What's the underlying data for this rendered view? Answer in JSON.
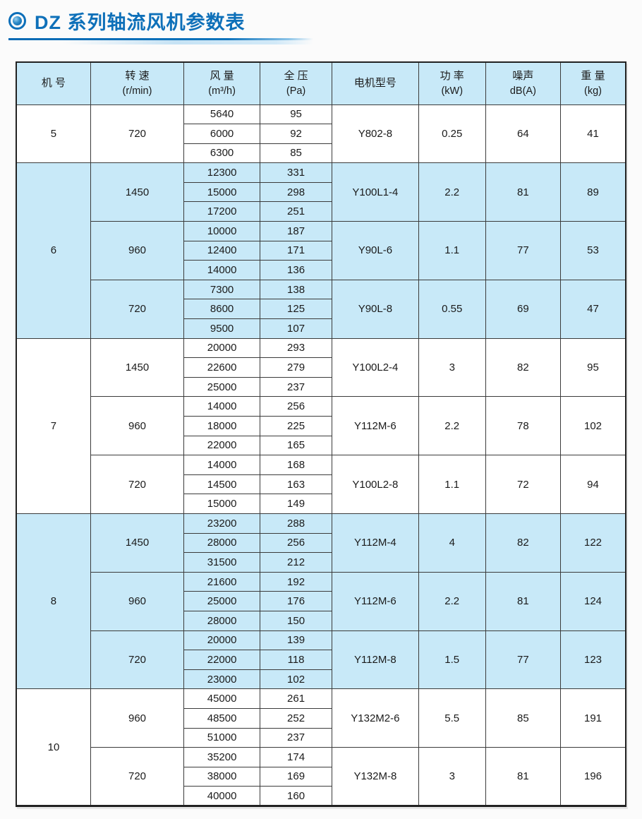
{
  "page": {
    "title": "DZ 系列轴流风机参数表"
  },
  "colors": {
    "accent_blue": "#0e70b9",
    "row_shade_blue": "#c8e9f8",
    "border_dark": "#222222"
  },
  "table": {
    "headers": [
      {
        "label": "机 号",
        "unit": ""
      },
      {
        "label": "转 速",
        "unit": "(r/min)"
      },
      {
        "label": "风 量",
        "unit": "(m³/h)"
      },
      {
        "label": "全 压",
        "unit": "(Pa)"
      },
      {
        "label": "电机型号",
        "unit": ""
      },
      {
        "label": "功 率",
        "unit": "(kW)"
      },
      {
        "label": "噪声",
        "unit": "dB(A)"
      },
      {
        "label": "重 量",
        "unit": "(kg)"
      }
    ],
    "groups": [
      {
        "model": "5",
        "shaded": false,
        "speeds": [
          {
            "rpm": "720",
            "motor": "Y802-8",
            "power": "0.25",
            "noise": "64",
            "weight": "41",
            "points": [
              {
                "flow": "5640",
                "pressure": "95"
              },
              {
                "flow": "6000",
                "pressure": "92"
              },
              {
                "flow": "6300",
                "pressure": "85"
              }
            ]
          }
        ]
      },
      {
        "model": "6",
        "shaded": true,
        "speeds": [
          {
            "rpm": "1450",
            "motor": "Y100L1-4",
            "power": "2.2",
            "noise": "81",
            "weight": "89",
            "points": [
              {
                "flow": "12300",
                "pressure": "331"
              },
              {
                "flow": "15000",
                "pressure": "298"
              },
              {
                "flow": "17200",
                "pressure": "251"
              }
            ]
          },
          {
            "rpm": "960",
            "motor": "Y90L-6",
            "power": "1.1",
            "noise": "77",
            "weight": "53",
            "points": [
              {
                "flow": "10000",
                "pressure": "187"
              },
              {
                "flow": "12400",
                "pressure": "171"
              },
              {
                "flow": "14000",
                "pressure": "136"
              }
            ]
          },
          {
            "rpm": "720",
            "motor": "Y90L-8",
            "power": "0.55",
            "noise": "69",
            "weight": "47",
            "points": [
              {
                "flow": "7300",
                "pressure": "138"
              },
              {
                "flow": "8600",
                "pressure": "125"
              },
              {
                "flow": "9500",
                "pressure": "107"
              }
            ]
          }
        ]
      },
      {
        "model": "7",
        "shaded": false,
        "speeds": [
          {
            "rpm": "1450",
            "motor": "Y100L2-4",
            "power": "3",
            "noise": "82",
            "weight": "95",
            "points": [
              {
                "flow": "20000",
                "pressure": "293"
              },
              {
                "flow": "22600",
                "pressure": "279"
              },
              {
                "flow": "25000",
                "pressure": "237"
              }
            ]
          },
          {
            "rpm": "960",
            "motor": "Y112M-6",
            "power": "2.2",
            "noise": "78",
            "weight": "102",
            "points": [
              {
                "flow": "14000",
                "pressure": "256"
              },
              {
                "flow": "18000",
                "pressure": "225"
              },
              {
                "flow": "22000",
                "pressure": "165"
              }
            ]
          },
          {
            "rpm": "720",
            "motor": "Y100L2-8",
            "power": "1.1",
            "noise": "72",
            "weight": "94",
            "points": [
              {
                "flow": "14000",
                "pressure": "168"
              },
              {
                "flow": "14500",
                "pressure": "163"
              },
              {
                "flow": "15000",
                "pressure": "149"
              }
            ]
          }
        ]
      },
      {
        "model": "8",
        "shaded": true,
        "speeds": [
          {
            "rpm": "1450",
            "motor": "Y112M-4",
            "power": "4",
            "noise": "82",
            "weight": "122",
            "points": [
              {
                "flow": "23200",
                "pressure": "288"
              },
              {
                "flow": "28000",
                "pressure": "256"
              },
              {
                "flow": "31500",
                "pressure": "212"
              }
            ]
          },
          {
            "rpm": "960",
            "motor": "Y112M-6",
            "power": "2.2",
            "noise": "81",
            "weight": "124",
            "points": [
              {
                "flow": "21600",
                "pressure": "192"
              },
              {
                "flow": "25000",
                "pressure": "176"
              },
              {
                "flow": "28000",
                "pressure": "150"
              }
            ]
          },
          {
            "rpm": "720",
            "motor": "Y112M-8",
            "power": "1.5",
            "noise": "77",
            "weight": "123",
            "points": [
              {
                "flow": "20000",
                "pressure": "139"
              },
              {
                "flow": "22000",
                "pressure": "118"
              },
              {
                "flow": "23000",
                "pressure": "102"
              }
            ]
          }
        ]
      },
      {
        "model": "10",
        "shaded": false,
        "speeds": [
          {
            "rpm": "960",
            "motor": "Y132M2-6",
            "power": "5.5",
            "noise": "85",
            "weight": "191",
            "points": [
              {
                "flow": "45000",
                "pressure": "261"
              },
              {
                "flow": "48500",
                "pressure": "252"
              },
              {
                "flow": "51000",
                "pressure": "237"
              }
            ]
          },
          {
            "rpm": "720",
            "motor": "Y132M-8",
            "power": "3",
            "noise": "81",
            "weight": "196",
            "points": [
              {
                "flow": "35200",
                "pressure": "174"
              },
              {
                "flow": "38000",
                "pressure": "169"
              },
              {
                "flow": "40000",
                "pressure": "160"
              }
            ]
          }
        ]
      }
    ]
  }
}
